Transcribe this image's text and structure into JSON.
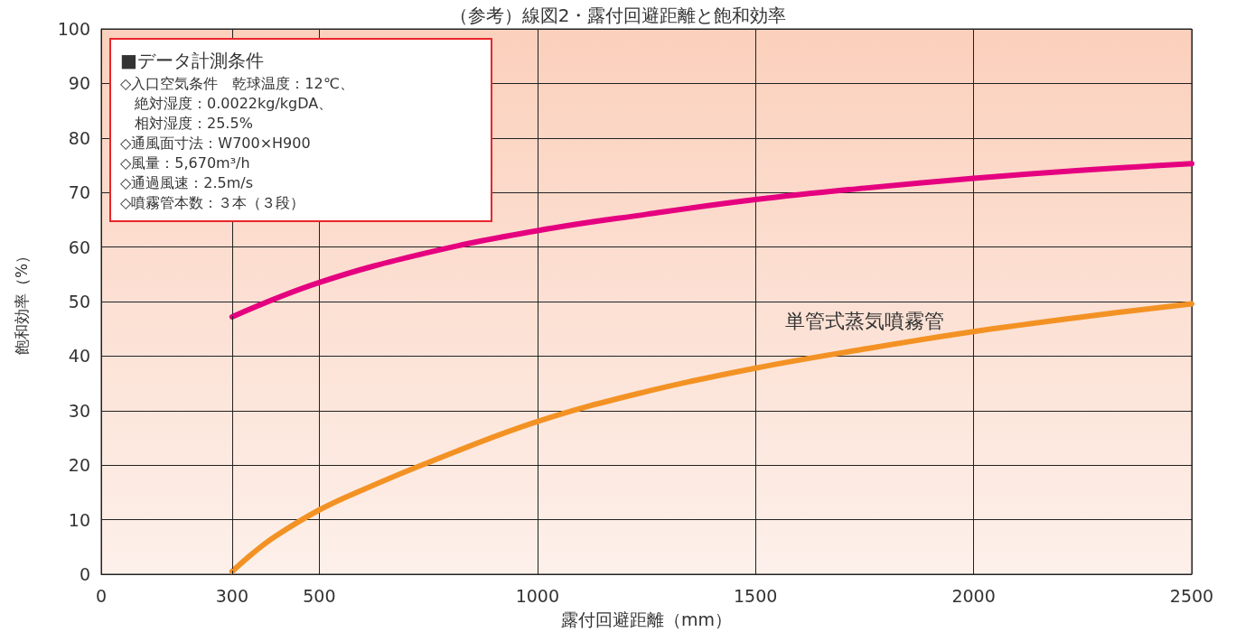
{
  "chart_data": {
    "type": "line",
    "title": "（参考）線図2・露付回避距離と飽和効率",
    "xlabel": "露付回避距離（mm）",
    "ylabel": "飽和効率（%）",
    "xlim": [
      0,
      2500
    ],
    "xticks": [
      0,
      300,
      500,
      1000,
      1500,
      2000,
      2500
    ],
    "ylim": [
      0,
      100
    ],
    "yticks": [
      0,
      10,
      20,
      30,
      40,
      50,
      60,
      70,
      80,
      90,
      100
    ],
    "grid": true,
    "legend": false,
    "marker": "none",
    "line_style": "solid",
    "ref_lines": [
      {
        "axis": "x",
        "value": 300,
        "label": null,
        "color": "#222222",
        "line_style": "dashed"
      }
    ],
    "series": [
      {
        "color": "#e5007f",
        "x": [
          300,
          500,
          750,
          1000,
          1250,
          1500,
          1750,
          2000,
          2250,
          2500
        ],
        "values": [
          47.2,
          53.5,
          59,
          63,
          66,
          68.7,
          70.8,
          72.6,
          74.1,
          75.3
        ]
      },
      {
        "name": "単管式蒸気噴霧管",
        "color": "#f39224",
        "x": [
          300,
          350,
          400,
          500,
          600,
          750,
          1000,
          1250,
          1500,
          1750,
          2000,
          2250,
          2500
        ],
        "values": [
          0.5,
          4,
          7,
          11.8,
          15.5,
          20.5,
          28,
          33.5,
          37.8,
          41.3,
          44.5,
          47.2,
          49.6
        ]
      }
    ],
    "annotations": [
      "■データ計測条件",
      "◇入口空気条件　乾球温度：12℃、",
      "　絶対湿度：0.0022kg/kgDA、",
      "　相対湿度：25.5%",
      "◇通風面寸法：W700×H900",
      "◇風量：5,670m³/h",
      "◇通過風速：2.5m/s",
      "◇噴霧管本数：３本（３段）"
    ]
  }
}
